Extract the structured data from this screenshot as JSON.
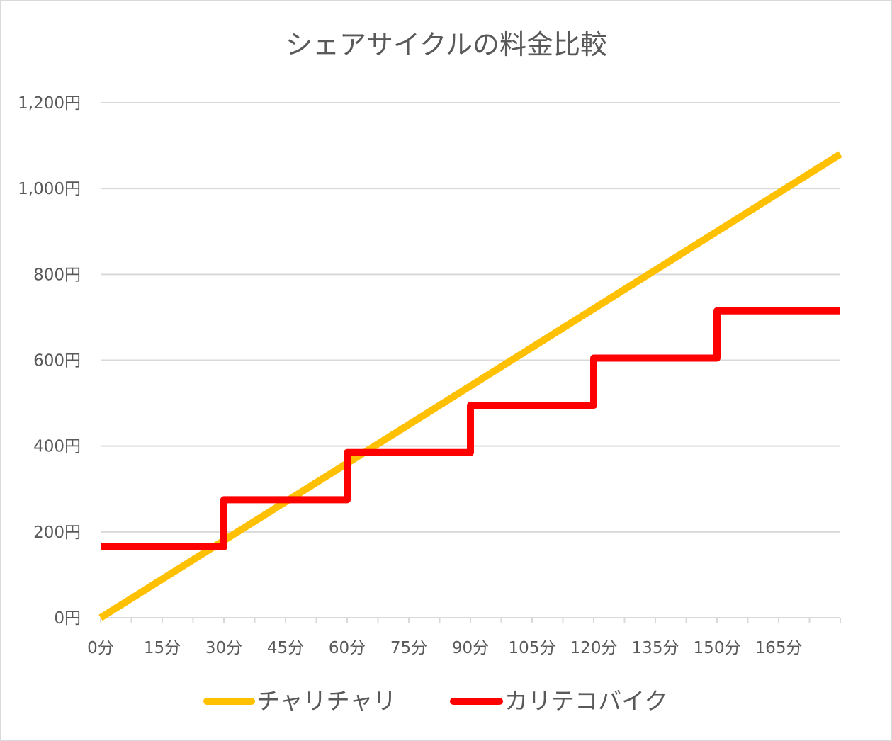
{
  "chart_data": {
    "type": "line",
    "title": "シェアサイクルの料金比較",
    "xlabel": "",
    "ylabel": "",
    "x_tick_labels": [
      "0分",
      "15分",
      "30分",
      "45分",
      "60分",
      "75分",
      "90分",
      "105分",
      "120分",
      "135分",
      "150分",
      "165分"
    ],
    "y_tick_labels": [
      "0円",
      "200円",
      "400円",
      "600円",
      "800円",
      "1,000円",
      "1,200円"
    ],
    "xlim": [
      0,
      180
    ],
    "ylim": [
      0,
      1200
    ],
    "grid": "horizontal",
    "legend_position": "bottom",
    "series": [
      {
        "name": "チャリチャリ",
        "color": "#ffc000",
        "x": [
          0,
          180
        ],
        "y": [
          0,
          1080
        ]
      },
      {
        "name": "カリテコバイク",
        "color": "#ff0000",
        "x": [
          0,
          30,
          30,
          60,
          60,
          90,
          90,
          120,
          120,
          150,
          150,
          180
        ],
        "y": [
          165,
          165,
          275,
          275,
          385,
          385,
          495,
          495,
          605,
          605,
          715,
          715
        ]
      }
    ]
  }
}
